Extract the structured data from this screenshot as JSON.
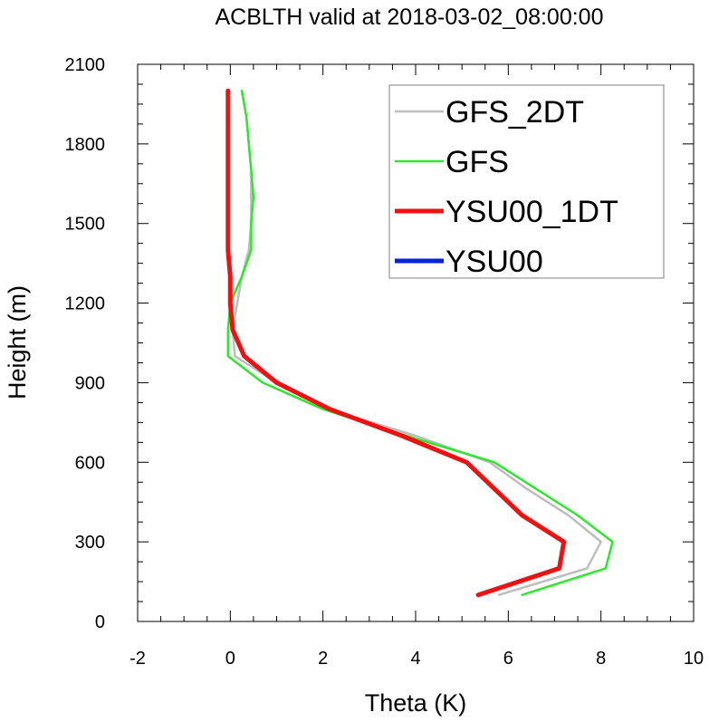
{
  "chart_data": {
    "type": "line",
    "title": "ACBLTH valid at 2018-03-02_08:00:00",
    "xlabel": "Theta (K)",
    "ylabel": "Height (m)",
    "xlim": [
      -2,
      10
    ],
    "ylim": [
      0,
      2100
    ],
    "xticks": [
      "-2",
      "0",
      "2",
      "4",
      "6",
      "8",
      "10"
    ],
    "yticks": [
      "0",
      "300",
      "600",
      "900",
      "1200",
      "1500",
      "1800",
      "2100"
    ],
    "grid": false,
    "legend_position": "top-right",
    "series": [
      {
        "name": "GFS_2DT",
        "color": "#bdbdbd",
        "line_width": "thin",
        "points": [
          [
            5.8,
            100
          ],
          [
            7.7,
            200
          ],
          [
            8.0,
            300
          ],
          [
            7.3,
            400
          ],
          [
            6.4,
            500
          ],
          [
            5.6,
            600
          ],
          [
            4.0,
            700
          ],
          [
            2.1,
            800
          ],
          [
            1.0,
            900
          ],
          [
            0.1,
            1000
          ],
          [
            0.05,
            1100
          ],
          [
            0.15,
            1200
          ],
          [
            0.25,
            1300
          ],
          [
            0.4,
            1400
          ],
          [
            0.45,
            1500
          ],
          [
            0.45,
            1600
          ],
          [
            0.45,
            1700
          ],
          [
            0.4,
            1800
          ],
          [
            0.35,
            1900
          ],
          [
            0.25,
            2000
          ]
        ]
      },
      {
        "name": "GFS",
        "color": "#2ee82e",
        "line_width": "thin",
        "points": [
          [
            6.3,
            100
          ],
          [
            8.1,
            200
          ],
          [
            8.25,
            300
          ],
          [
            7.5,
            400
          ],
          [
            6.6,
            500
          ],
          [
            5.7,
            600
          ],
          [
            3.8,
            700
          ],
          [
            2.0,
            800
          ],
          [
            0.7,
            900
          ],
          [
            -0.05,
            1000
          ],
          [
            -0.05,
            1100
          ],
          [
            0.0,
            1200
          ],
          [
            0.25,
            1300
          ],
          [
            0.45,
            1400
          ],
          [
            0.45,
            1500
          ],
          [
            0.5,
            1600
          ],
          [
            0.45,
            1700
          ],
          [
            0.4,
            1800
          ],
          [
            0.35,
            1900
          ],
          [
            0.25,
            2000
          ]
        ]
      },
      {
        "name": "YSU00_1DT",
        "color": "#ee1111",
        "line_width": "thick",
        "points": [
          [
            5.35,
            100
          ],
          [
            7.1,
            200
          ],
          [
            7.2,
            300
          ],
          [
            6.3,
            400
          ],
          [
            5.7,
            500
          ],
          [
            5.1,
            600
          ],
          [
            3.7,
            700
          ],
          [
            2.15,
            800
          ],
          [
            1.0,
            900
          ],
          [
            0.3,
            1000
          ],
          [
            0.05,
            1100
          ],
          [
            0.0,
            1200
          ],
          [
            0.0,
            1300
          ],
          [
            -0.05,
            1400
          ],
          [
            -0.05,
            1500
          ],
          [
            -0.05,
            1600
          ],
          [
            -0.05,
            1700
          ],
          [
            -0.05,
            1800
          ],
          [
            -0.05,
            1900
          ],
          [
            -0.05,
            2000
          ]
        ]
      },
      {
        "name": "YSU00",
        "color": "#0022dd",
        "line_width": "thick",
        "points": []
      }
    ]
  }
}
